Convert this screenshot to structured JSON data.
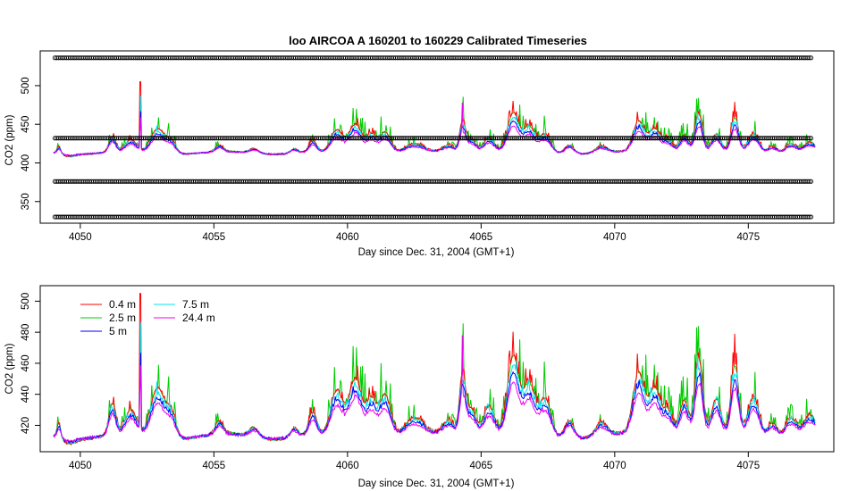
{
  "chart_data": [
    {
      "type": "scatter+line",
      "title": "loo   AIRCOA  A    160201  to  160229   Calibrated Timeseries",
      "xlabel": "Day since Dec. 31, 2004 (GMT+1)",
      "ylabel": "CO2 (ppm)",
      "xlim": [
        4048.5,
        4078.2
      ],
      "ylim": [
        322,
        545
      ],
      "xticks": [
        "4050",
        "4055",
        "4060",
        "4065",
        "4070",
        "4075"
      ],
      "yticks": [
        "350",
        "400",
        "450",
        "500"
      ],
      "calibration_levels_ppm": [
        536,
        432,
        376,
        330
      ],
      "calibration_x_range": [
        4049.05,
        4077.4
      ],
      "series": [
        {
          "name": "0.4 m",
          "color": "#ff0000"
        },
        {
          "name": "2.5 m",
          "color": "#00cd00"
        },
        {
          "name": "5 m",
          "color": "#0000ff"
        },
        {
          "name": "7.5 m",
          "color": "#00e5ee"
        },
        {
          "name": "24.4 m",
          "color": "#ee00ee"
        }
      ]
    },
    {
      "type": "line",
      "xlabel": "Day since Dec. 31, 2004 (GMT+1)",
      "ylabel": "CO2 (ppm)",
      "xlim": [
        4048.5,
        4078.2
      ],
      "ylim": [
        403,
        510
      ],
      "xticks": [
        "4050",
        "4055",
        "4060",
        "4065",
        "4070",
        "4075"
      ],
      "yticks": [
        "420",
        "440",
        "460",
        "480",
        "500"
      ],
      "legend": {
        "placement": "top-left",
        "entries": [
          {
            "label": "0.4 m",
            "color": "#ff0000"
          },
          {
            "label": "2.5 m",
            "color": "#00cd00"
          },
          {
            "label": "5 m",
            "color": "#0000ff"
          },
          {
            "label": "7.5 m",
            "color": "#00e5ee"
          },
          {
            "label": "24.4 m",
            "color": "#ee00ee"
          }
        ]
      },
      "baseline_ppm": 413,
      "x_range": [
        4049.0,
        4077.5
      ],
      "events": [
        {
          "day": 4049.2,
          "peak": 9,
          "width": 0.1
        },
        {
          "day": 4051.2,
          "peak": 20,
          "width": 0.18
        },
        {
          "day": 4051.9,
          "peak": 15,
          "width": 0.3
        },
        {
          "day": 4052.25,
          "peak": 90,
          "width": 0.02
        },
        {
          "day": 4052.9,
          "peak": 32,
          "width": 0.35
        },
        {
          "day": 4053.4,
          "peak": 16,
          "width": 0.25
        },
        {
          "day": 4055.2,
          "peak": 8,
          "width": 0.2
        },
        {
          "day": 4056.5,
          "peak": 6,
          "width": 0.25
        },
        {
          "day": 4058.0,
          "peak": 6,
          "width": 0.2
        },
        {
          "day": 4058.7,
          "peak": 14,
          "width": 0.2
        },
        {
          "day": 4059.6,
          "peak": 28,
          "width": 0.3
        },
        {
          "day": 4060.3,
          "peak": 38,
          "width": 0.35
        },
        {
          "day": 4060.9,
          "peak": 24,
          "width": 0.25
        },
        {
          "day": 4061.4,
          "peak": 28,
          "width": 0.3
        },
        {
          "day": 4062.5,
          "peak": 10,
          "width": 0.5
        },
        {
          "day": 4063.8,
          "peak": 10,
          "width": 0.35
        },
        {
          "day": 4064.3,
          "peak": 35,
          "width": 0.15
        },
        {
          "day": 4064.6,
          "peak": 20,
          "width": 0.3
        },
        {
          "day": 4065.3,
          "peak": 20,
          "width": 0.3
        },
        {
          "day": 4066.2,
          "peak": 50,
          "width": 0.3
        },
        {
          "day": 4066.8,
          "peak": 32,
          "width": 0.3
        },
        {
          "day": 4067.4,
          "peak": 24,
          "width": 0.3
        },
        {
          "day": 4068.3,
          "peak": 12,
          "width": 0.25
        },
        {
          "day": 4069.5,
          "peak": 8,
          "width": 0.3
        },
        {
          "day": 4070.9,
          "peak": 40,
          "width": 0.3
        },
        {
          "day": 4071.5,
          "peak": 32,
          "width": 0.3
        },
        {
          "day": 4072.0,
          "peak": 18,
          "width": 0.25
        },
        {
          "day": 4072.6,
          "peak": 24,
          "width": 0.25
        },
        {
          "day": 4073.15,
          "peak": 50,
          "width": 0.2
        },
        {
          "day": 4073.8,
          "peak": 22,
          "width": 0.25
        },
        {
          "day": 4074.5,
          "peak": 45,
          "width": 0.2
        },
        {
          "day": 4075.2,
          "peak": 26,
          "width": 0.3
        },
        {
          "day": 4075.9,
          "peak": 10,
          "width": 0.25
        },
        {
          "day": 4076.6,
          "peak": 12,
          "width": 0.3
        },
        {
          "day": 4077.3,
          "peak": 12,
          "width": 0.3
        }
      ]
    }
  ]
}
